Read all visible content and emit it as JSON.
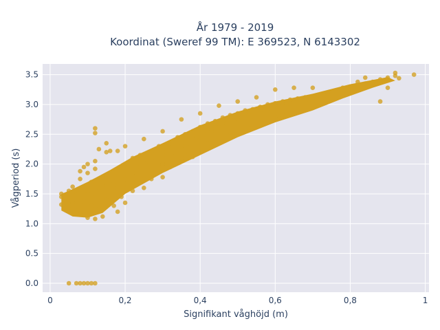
{
  "chart_data": {
    "type": "scatter",
    "title": "År 1979 - 2019",
    "subtitle": "Koordinat (Sweref 99 TM): E 369523, N 6143302",
    "xlabel": "Signifikant våghöjd (m)",
    "ylabel": "Vågperiod (s)",
    "xlim": [
      -0.02,
      1.01
    ],
    "ylim": [
      -0.15,
      3.68
    ],
    "x_ticks": [
      0,
      0.2,
      0.4,
      0.6,
      0.8,
      1
    ],
    "x_tick_labels": [
      "0",
      "0,2",
      "0,4",
      "0,6",
      "0,8",
      "1"
    ],
    "y_ticks": [
      0,
      0.5,
      1,
      1.5,
      2,
      2.5,
      3,
      3.5
    ],
    "y_tick_labels": [
      "0.0",
      "0.5",
      "1.0",
      "1.5",
      "2.0",
      "2.5",
      "3.0",
      "3.5"
    ],
    "grid": true,
    "background": "#e5e5ee",
    "marker_color": "#d4a020",
    "series": [
      {
        "points": [
          [
            0.03,
            1.32
          ],
          [
            0.03,
            1.45
          ],
          [
            0.03,
            1.5
          ],
          [
            0.04,
            1.4
          ],
          [
            0.05,
            1.25
          ],
          [
            0.05,
            1.55
          ],
          [
            0.06,
            1.35
          ],
          [
            0.06,
            1.62
          ],
          [
            0.07,
            1.2
          ],
          [
            0.07,
            1.48
          ],
          [
            0.08,
            1.75
          ],
          [
            0.08,
            1.15
          ],
          [
            0.09,
            1.38
          ],
          [
            0.09,
            1.6
          ],
          [
            0.1,
            1.1
          ],
          [
            0.1,
            1.5
          ],
          [
            0.1,
            1.85
          ],
          [
            0.11,
            1.3
          ],
          [
            0.11,
            1.7
          ],
          [
            0.12,
            1.45
          ],
          [
            0.12,
            1.92
          ],
          [
            0.13,
            1.55
          ],
          [
            0.13,
            1.25
          ],
          [
            0.14,
            1.65
          ],
          [
            0.15,
            1.4
          ],
          [
            0.15,
            1.8
          ],
          [
            0.16,
            1.5
          ],
          [
            0.17,
            1.7
          ],
          [
            0.17,
            1.3
          ],
          [
            0.18,
            1.6
          ],
          [
            0.18,
            1.9
          ],
          [
            0.19,
            1.45
          ],
          [
            0.2,
            1.75
          ],
          [
            0.2,
            2.0
          ],
          [
            0.21,
            1.6
          ],
          [
            0.22,
            1.85
          ],
          [
            0.22,
            2.1
          ],
          [
            0.23,
            1.7
          ],
          [
            0.24,
            1.95
          ],
          [
            0.24,
            2.15
          ],
          [
            0.25,
            1.8
          ],
          [
            0.26,
            2.05
          ],
          [
            0.27,
            2.2
          ],
          [
            0.27,
            1.9
          ],
          [
            0.28,
            2.1
          ],
          [
            0.29,
            2.3
          ],
          [
            0.3,
            2.0
          ],
          [
            0.3,
            2.25
          ],
          [
            0.31,
            2.15
          ],
          [
            0.32,
            2.35
          ],
          [
            0.33,
            2.2
          ],
          [
            0.34,
            2.45
          ],
          [
            0.35,
            2.3
          ],
          [
            0.36,
            2.5
          ],
          [
            0.37,
            2.35
          ],
          [
            0.38,
            2.55
          ],
          [
            0.39,
            2.45
          ],
          [
            0.4,
            2.62
          ],
          [
            0.41,
            2.5
          ],
          [
            0.42,
            2.68
          ],
          [
            0.43,
            2.55
          ],
          [
            0.44,
            2.72
          ],
          [
            0.45,
            2.62
          ],
          [
            0.46,
            2.78
          ],
          [
            0.47,
            2.68
          ],
          [
            0.48,
            2.82
          ],
          [
            0.49,
            2.72
          ],
          [
            0.5,
            2.85
          ],
          [
            0.51,
            2.78
          ],
          [
            0.52,
            2.9
          ],
          [
            0.53,
            2.82
          ],
          [
            0.54,
            2.92
          ],
          [
            0.55,
            2.86
          ],
          [
            0.56,
            2.96
          ],
          [
            0.57,
            2.9
          ],
          [
            0.58,
            3.0
          ],
          [
            0.59,
            2.93
          ],
          [
            0.6,
            3.02
          ],
          [
            0.61,
            2.97
          ],
          [
            0.62,
            3.05
          ],
          [
            0.63,
            3.0
          ],
          [
            0.64,
            3.08
          ],
          [
            0.65,
            3.03
          ],
          [
            0.66,
            3.1
          ],
          [
            0.67,
            3.06
          ],
          [
            0.68,
            3.12
          ],
          [
            0.69,
            3.08
          ],
          [
            0.7,
            3.14
          ],
          [
            0.71,
            3.1
          ],
          [
            0.72,
            3.16
          ],
          [
            0.73,
            3.15
          ],
          [
            0.74,
            3.2
          ],
          [
            0.76,
            3.22
          ],
          [
            0.78,
            3.28
          ],
          [
            0.8,
            3.3
          ],
          [
            0.82,
            3.32
          ],
          [
            0.84,
            3.35
          ],
          [
            0.86,
            3.38
          ],
          [
            0.88,
            3.42
          ],
          [
            0.9,
            3.45
          ],
          [
            0.92,
            3.48
          ],
          [
            0.93,
            3.44
          ],
          [
            0.97,
            3.5
          ],
          [
            0.92,
            3.53
          ],
          [
            0.84,
            3.45
          ],
          [
            0.82,
            3.38
          ],
          [
            0.88,
            3.05
          ],
          [
            0.9,
            3.28
          ],
          [
            0.6,
            3.25
          ],
          [
            0.65,
            3.28
          ],
          [
            0.7,
            3.28
          ],
          [
            0.55,
            3.12
          ],
          [
            0.5,
            3.05
          ],
          [
            0.45,
            2.98
          ],
          [
            0.4,
            2.85
          ],
          [
            0.35,
            2.75
          ],
          [
            0.3,
            2.55
          ],
          [
            0.25,
            2.42
          ],
          [
            0.2,
            2.3
          ],
          [
            0.18,
            2.22
          ],
          [
            0.15,
            2.2
          ],
          [
            0.12,
            2.6
          ],
          [
            0.12,
            2.52
          ],
          [
            0.15,
            2.35
          ],
          [
            0.16,
            2.22
          ],
          [
            0.1,
            2.0
          ],
          [
            0.09,
            1.95
          ],
          [
            0.08,
            1.88
          ],
          [
            0.12,
            2.05
          ],
          [
            0.13,
            2.25
          ],
          [
            0.18,
            1.2
          ],
          [
            0.14,
            1.12
          ],
          [
            0.12,
            1.08
          ],
          [
            0.2,
            1.35
          ],
          [
            0.22,
            1.55
          ],
          [
            0.25,
            1.6
          ],
          [
            0.27,
            1.75
          ],
          [
            0.3,
            1.78
          ],
          [
            0.32,
            1.95
          ],
          [
            0.35,
            2.05
          ],
          [
            0.38,
            2.12
          ],
          [
            0.4,
            2.2
          ],
          [
            0.43,
            2.3
          ],
          [
            0.46,
            2.4
          ],
          [
            0.5,
            2.5
          ],
          [
            0.53,
            2.6
          ],
          [
            0.57,
            2.72
          ],
          [
            0.6,
            2.78
          ],
          [
            0.63,
            2.85
          ],
          [
            0.66,
            2.9
          ],
          [
            0.3,
            2.0
          ],
          [
            0.36,
            2.15
          ],
          [
            0.42,
            2.35
          ],
          [
            0.48,
            2.48
          ],
          [
            0.55,
            2.65
          ],
          [
            0.62,
            2.82
          ],
          [
            0.05,
            0.0
          ],
          [
            0.07,
            0.0
          ],
          [
            0.08,
            0.0
          ],
          [
            0.09,
            0.0
          ],
          [
            0.1,
            0.0
          ],
          [
            0.11,
            0.0
          ],
          [
            0.12,
            0.0
          ]
        ]
      }
    ]
  }
}
